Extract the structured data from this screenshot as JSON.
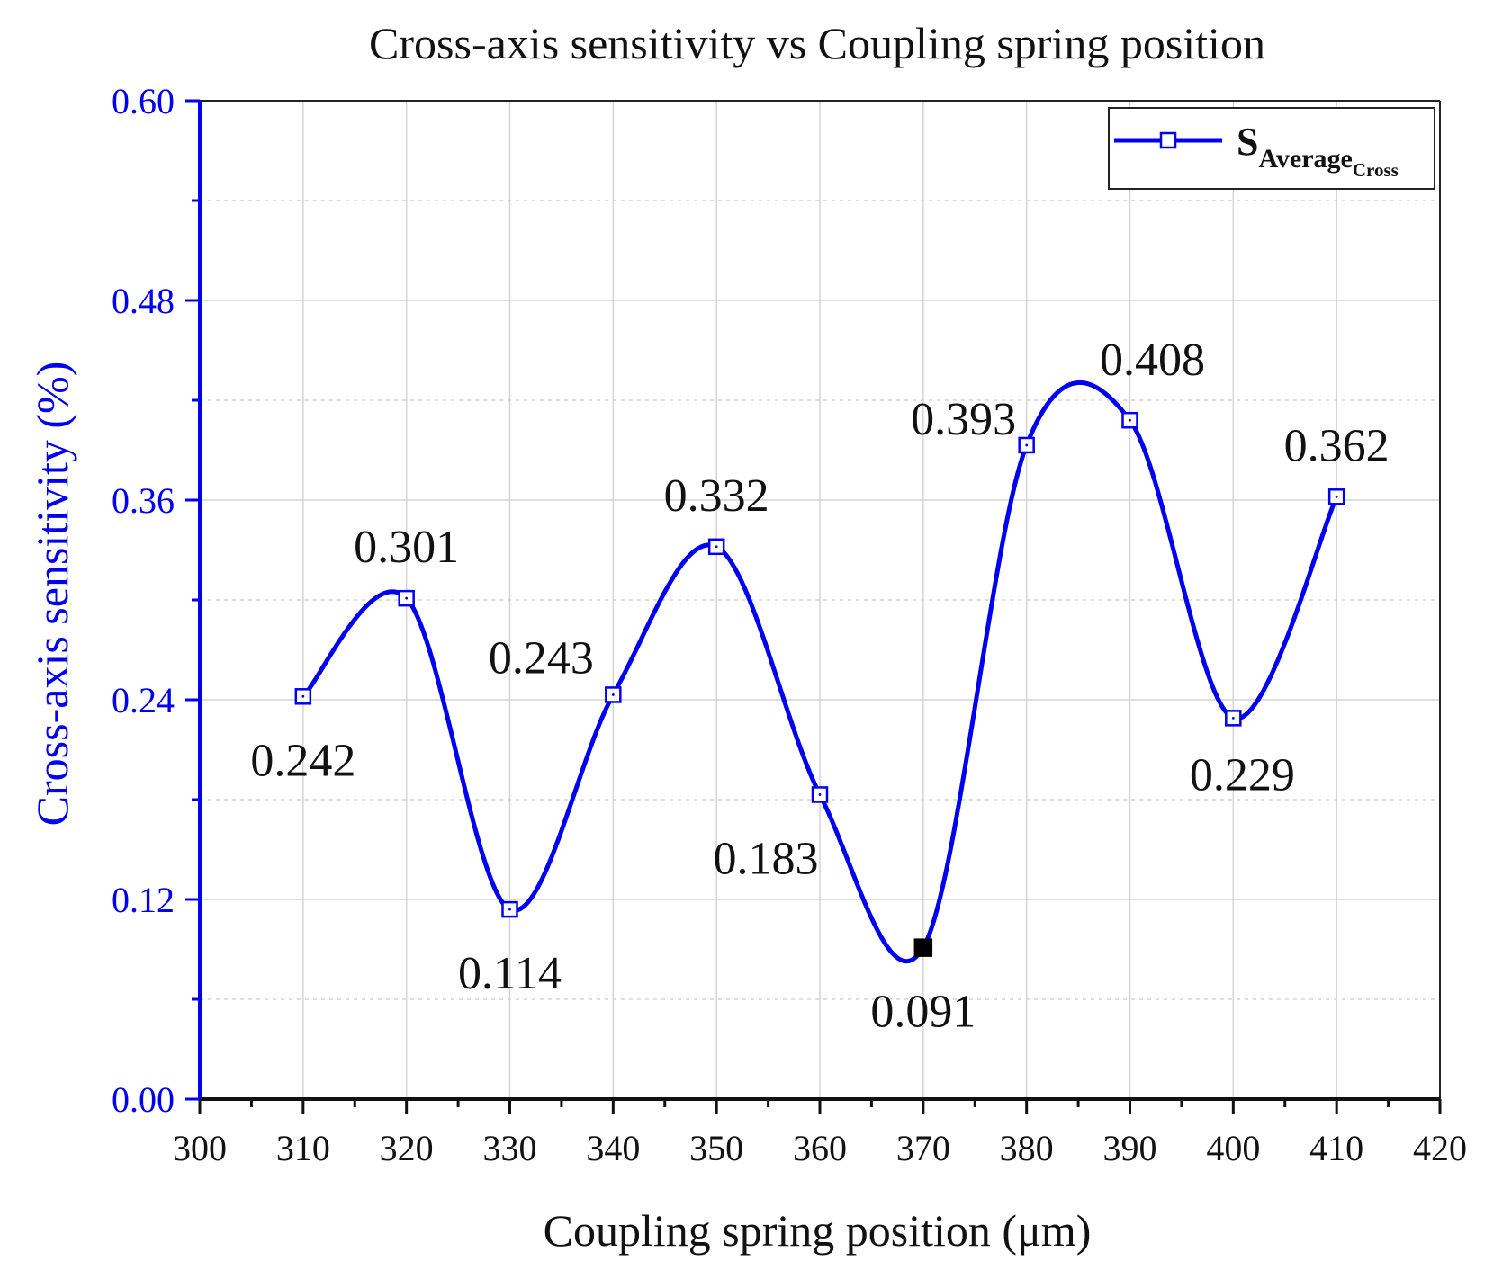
{
  "chart_data": {
    "type": "line",
    "title": "Cross-axis sensitivity vs Coupling spring position",
    "xlabel": "Coupling spring position (μm)",
    "ylabel": "Cross-axis sensitivity (%)",
    "xlim": [
      300,
      420
    ],
    "ylim": [
      0,
      0.6
    ],
    "x_ticks": [
      "300",
      "310",
      "320",
      "330",
      "340",
      "350",
      "360",
      "370",
      "380",
      "390",
      "400",
      "410",
      "420"
    ],
    "y_ticks": [
      "0.00",
      "0.12",
      "0.24",
      "0.36",
      "0.48",
      "0.60"
    ],
    "grid": true,
    "legend_position": "top-right",
    "series": [
      {
        "name": "S",
        "name_sub": "Average",
        "name_subsub": "Cross",
        "color": "#0000ee",
        "x": [
          310,
          320,
          330,
          340,
          350,
          360,
          370,
          380,
          390,
          400,
          410
        ],
        "y": [
          0.242,
          0.301,
          0.114,
          0.243,
          0.332,
          0.183,
          0.091,
          0.393,
          0.408,
          0.229,
          0.362
        ],
        "labels": [
          "0.242",
          "0.301",
          "0.114",
          "0.243",
          "0.332",
          "0.183",
          "0.091",
          "0.393",
          "0.408",
          "0.229",
          "0.362"
        ],
        "highlighted_index": 6
      }
    ],
    "axis_color": "#0000ee",
    "label_color": "#111111",
    "grid_color": "#d4d4d4"
  }
}
